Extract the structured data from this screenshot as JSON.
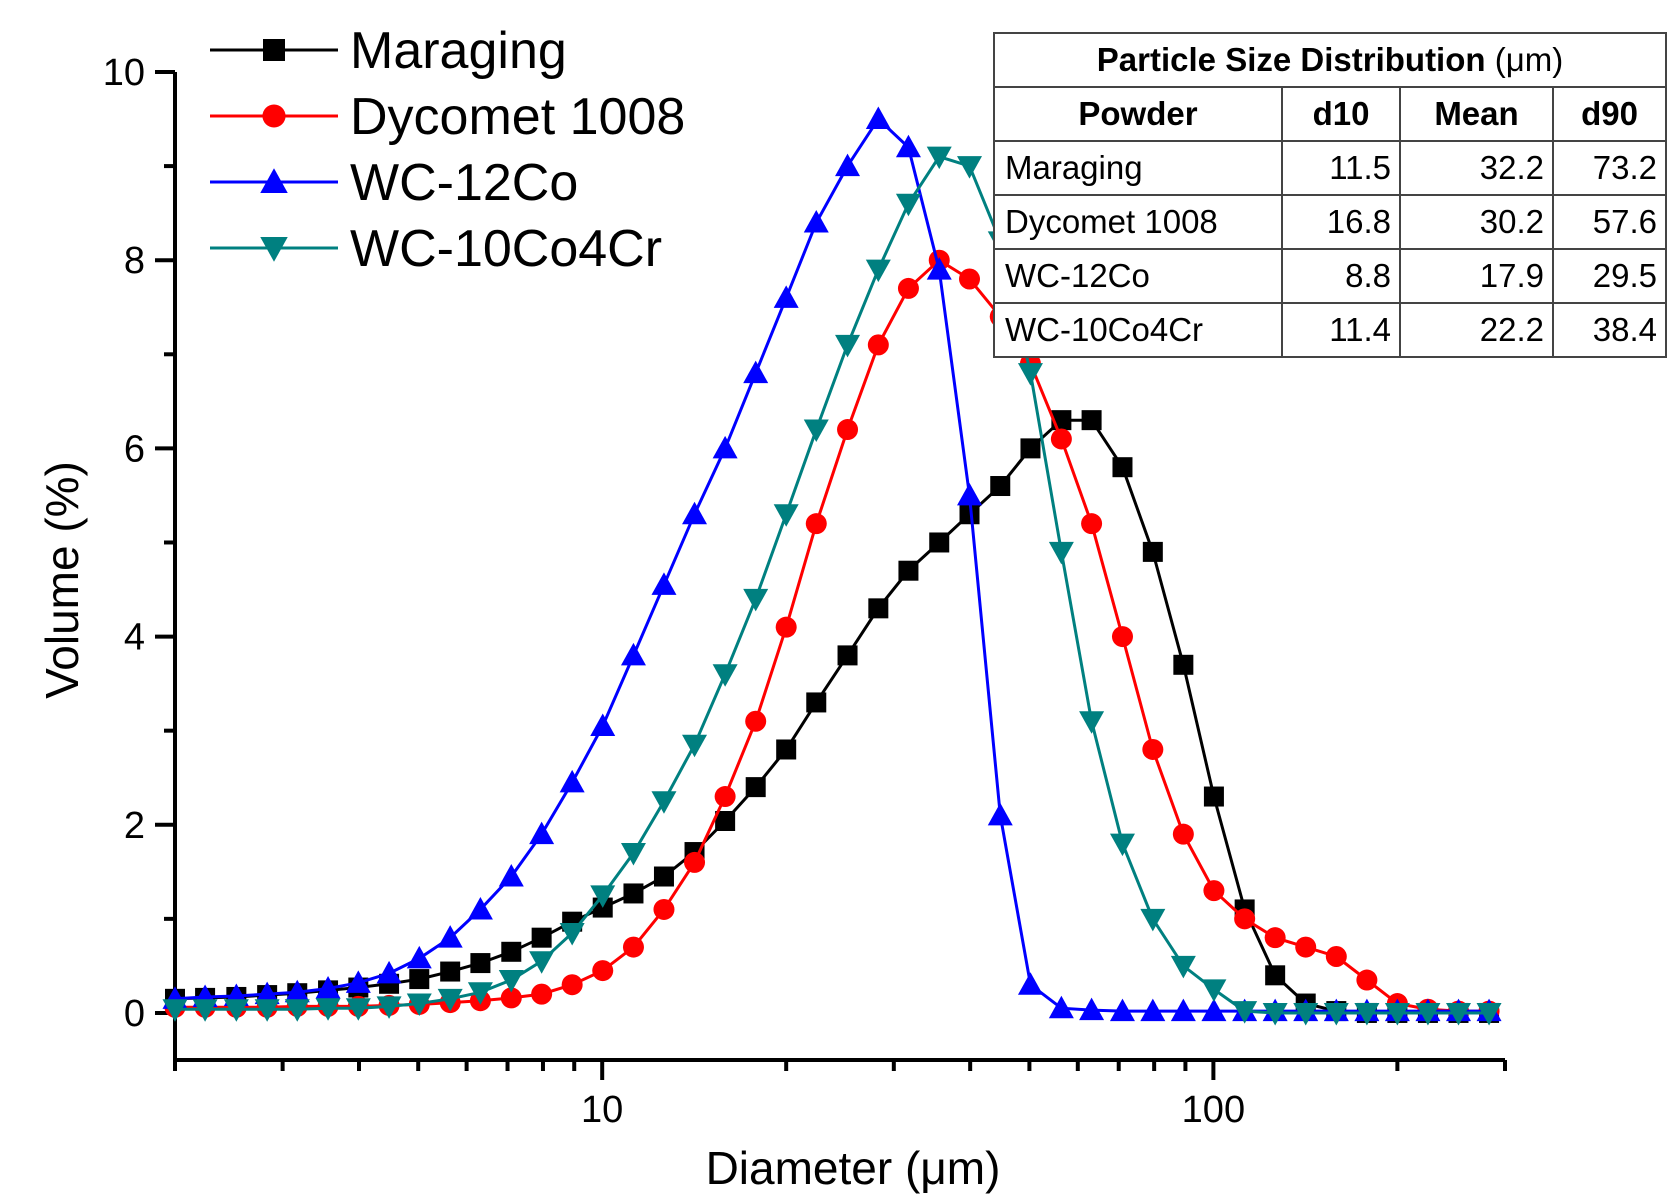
{
  "chart_data": {
    "type": "line",
    "xlabel": "Diameter (μm)",
    "ylabel": "Volume (%)",
    "xscale": "log",
    "xlim": [
      2,
      300
    ],
    "ylim": [
      -0.5,
      10
    ],
    "x_ticks": [
      {
        "value": 10,
        "label": "10"
      },
      {
        "value": 100,
        "label": "100"
      }
    ],
    "y_ticks": [
      {
        "value": 0,
        "label": "0"
      },
      {
        "value": 2,
        "label": "2"
      },
      {
        "value": 4,
        "label": "4"
      },
      {
        "value": 6,
        "label": "6"
      },
      {
        "value": 8,
        "label": "8"
      },
      {
        "value": 10,
        "label": "10"
      }
    ],
    "legend_position": "top-left",
    "grid": false,
    "series": [
      {
        "name": "Maraging",
        "color": "#000000",
        "marker": "square",
        "points": [
          [
            2.0,
            0.15
          ],
          [
            2.24,
            0.16
          ],
          [
            2.52,
            0.17
          ],
          [
            2.83,
            0.19
          ],
          [
            3.17,
            0.21
          ],
          [
            3.56,
            0.24
          ],
          [
            3.99,
            0.27
          ],
          [
            4.48,
            0.31
          ],
          [
            5.02,
            0.36
          ],
          [
            5.64,
            0.44
          ],
          [
            6.32,
            0.53
          ],
          [
            7.1,
            0.65
          ],
          [
            7.96,
            0.8
          ],
          [
            8.93,
            0.97
          ],
          [
            10.02,
            1.12
          ],
          [
            11.25,
            1.27
          ],
          [
            12.62,
            1.45
          ],
          [
            14.16,
            1.71
          ],
          [
            15.89,
            2.04
          ],
          [
            17.83,
            2.4
          ],
          [
            20.0,
            2.8
          ],
          [
            22.4,
            3.3
          ],
          [
            25.2,
            3.8
          ],
          [
            28.3,
            4.3
          ],
          [
            31.7,
            4.7
          ],
          [
            35.6,
            5.0
          ],
          [
            39.9,
            5.3
          ],
          [
            44.8,
            5.6
          ],
          [
            50.2,
            6.0
          ],
          [
            56.4,
            6.3
          ],
          [
            63.2,
            6.3
          ],
          [
            71.0,
            5.8
          ],
          [
            79.6,
            4.9
          ],
          [
            89.3,
            3.7
          ],
          [
            100.2,
            2.3
          ],
          [
            112.5,
            1.1
          ],
          [
            126.2,
            0.4
          ],
          [
            141.6,
            0.1
          ],
          [
            158.9,
            0.02
          ],
          [
            178.3,
            0.0
          ],
          [
            200.0,
            0.0
          ],
          [
            224.4,
            0.0
          ],
          [
            251.8,
            0.0
          ],
          [
            282.5,
            0.0
          ]
        ]
      },
      {
        "name": "Dycomet 1008",
        "color": "#ff0000",
        "marker": "circle",
        "points": [
          [
            2.0,
            0.06
          ],
          [
            2.24,
            0.06
          ],
          [
            2.52,
            0.06
          ],
          [
            2.83,
            0.06
          ],
          [
            3.17,
            0.07
          ],
          [
            3.56,
            0.07
          ],
          [
            3.99,
            0.07
          ],
          [
            4.48,
            0.08
          ],
          [
            5.02,
            0.09
          ],
          [
            5.64,
            0.11
          ],
          [
            6.32,
            0.13
          ],
          [
            7.1,
            0.16
          ],
          [
            7.96,
            0.2
          ],
          [
            8.93,
            0.3
          ],
          [
            10.02,
            0.45
          ],
          [
            11.25,
            0.7
          ],
          [
            12.62,
            1.1
          ],
          [
            14.16,
            1.6
          ],
          [
            15.89,
            2.3
          ],
          [
            17.83,
            3.1
          ],
          [
            20.0,
            4.1
          ],
          [
            22.4,
            5.2
          ],
          [
            25.2,
            6.2
          ],
          [
            28.3,
            7.1
          ],
          [
            31.7,
            7.7
          ],
          [
            35.6,
            8.0
          ],
          [
            39.9,
            7.8
          ],
          [
            44.8,
            7.4
          ],
          [
            50.2,
            6.9
          ],
          [
            56.4,
            6.1
          ],
          [
            63.2,
            5.2
          ],
          [
            71.0,
            4.0
          ],
          [
            79.6,
            2.8
          ],
          [
            89.3,
            1.9
          ],
          [
            100.2,
            1.3
          ],
          [
            112.5,
            1.0
          ],
          [
            126.2,
            0.8
          ],
          [
            141.6,
            0.7
          ],
          [
            158.9,
            0.6
          ],
          [
            178.3,
            0.35
          ],
          [
            200.0,
            0.1
          ],
          [
            224.4,
            0.04
          ],
          [
            251.8,
            0.02
          ],
          [
            282.5,
            0.02
          ]
        ]
      },
      {
        "name": "WC-12Co",
        "color": "#0000ff",
        "marker": "triangle-up",
        "points": [
          [
            2.0,
            0.15
          ],
          [
            2.24,
            0.17
          ],
          [
            2.52,
            0.18
          ],
          [
            2.83,
            0.2
          ],
          [
            3.17,
            0.22
          ],
          [
            3.56,
            0.26
          ],
          [
            3.99,
            0.32
          ],
          [
            4.48,
            0.42
          ],
          [
            5.02,
            0.58
          ],
          [
            5.64,
            0.8
          ],
          [
            6.32,
            1.1
          ],
          [
            7.1,
            1.45
          ],
          [
            7.96,
            1.9
          ],
          [
            8.93,
            2.45
          ],
          [
            10.02,
            3.05
          ],
          [
            11.25,
            3.8
          ],
          [
            12.62,
            4.55
          ],
          [
            14.16,
            5.3
          ],
          [
            15.89,
            6.0
          ],
          [
            17.83,
            6.8
          ],
          [
            20.0,
            7.6
          ],
          [
            22.4,
            8.4
          ],
          [
            25.2,
            9.0
          ],
          [
            28.3,
            9.5
          ],
          [
            31.7,
            9.2
          ],
          [
            35.6,
            7.9
          ],
          [
            39.9,
            5.5
          ],
          [
            44.8,
            2.1
          ],
          [
            50.2,
            0.3
          ],
          [
            56.4,
            0.05
          ],
          [
            63.2,
            0.03
          ],
          [
            71.0,
            0.02
          ],
          [
            79.6,
            0.02
          ],
          [
            89.3,
            0.02
          ],
          [
            100.2,
            0.02
          ],
          [
            112.5,
            0.02
          ],
          [
            126.2,
            0.02
          ],
          [
            141.6,
            0.02
          ],
          [
            158.9,
            0.02
          ],
          [
            178.3,
            0.02
          ],
          [
            200.0,
            0.02
          ],
          [
            224.4,
            0.02
          ],
          [
            251.8,
            0.02
          ],
          [
            282.5,
            0.02
          ]
        ]
      },
      {
        "name": "WC-10Co4Cr",
        "color": "#008080",
        "marker": "triangle-down",
        "points": [
          [
            2.0,
            0.04
          ],
          [
            2.24,
            0.04
          ],
          [
            2.52,
            0.04
          ],
          [
            2.83,
            0.04
          ],
          [
            3.17,
            0.04
          ],
          [
            3.56,
            0.05
          ],
          [
            3.99,
            0.05
          ],
          [
            4.48,
            0.07
          ],
          [
            5.02,
            0.1
          ],
          [
            5.64,
            0.15
          ],
          [
            6.32,
            0.22
          ],
          [
            7.1,
            0.35
          ],
          [
            7.96,
            0.55
          ],
          [
            8.93,
            0.85
          ],
          [
            10.02,
            1.25
          ],
          [
            11.25,
            1.7
          ],
          [
            12.62,
            2.25
          ],
          [
            14.16,
            2.85
          ],
          [
            15.89,
            3.6
          ],
          [
            17.83,
            4.4
          ],
          [
            20.0,
            5.3
          ],
          [
            22.4,
            6.2
          ],
          [
            25.2,
            7.1
          ],
          [
            28.3,
            7.9
          ],
          [
            31.7,
            8.6
          ],
          [
            35.6,
            9.1
          ],
          [
            39.9,
            9.0
          ],
          [
            44.8,
            8.2
          ],
          [
            50.2,
            6.8
          ],
          [
            56.4,
            4.9
          ],
          [
            63.2,
            3.1
          ],
          [
            71.0,
            1.8
          ],
          [
            79.6,
            1.0
          ],
          [
            89.3,
            0.5
          ],
          [
            100.2,
            0.25
          ],
          [
            112.5,
            0.02
          ],
          [
            126.2,
            0.0
          ],
          [
            141.6,
            0.0
          ],
          [
            158.9,
            0.0
          ],
          [
            178.3,
            0.0
          ],
          [
            200.0,
            0.0
          ],
          [
            224.4,
            0.0
          ],
          [
            251.8,
            0.0
          ],
          [
            282.5,
            0.0
          ]
        ]
      }
    ]
  },
  "psd_table": {
    "title": "Particle Size Distribution",
    "unit": "(μm)",
    "headers": [
      "Powder",
      "d10",
      "Mean",
      "d90"
    ],
    "rows": [
      [
        "Maraging",
        "11.5",
        "32.2",
        "73.2"
      ],
      [
        "Dycomet 1008",
        "16.8",
        "30.2",
        "57.6"
      ],
      [
        "WC-12Co",
        "8.8",
        "17.9",
        "29.5"
      ],
      [
        "WC-10Co4Cr",
        "11.4",
        "22.2",
        "38.4"
      ]
    ]
  }
}
